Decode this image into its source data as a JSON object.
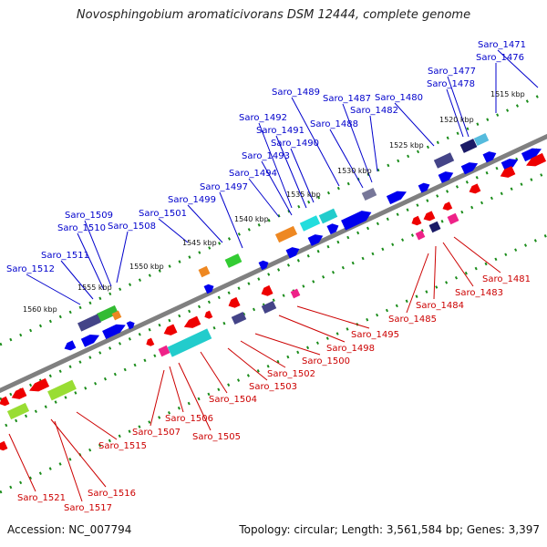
{
  "title": "Novosphingobium aromaticivorans DSM 12444, complete genome",
  "accession_text": "Accession: NC_007794",
  "summary_text": "Topology: circular; Length: 3,561,584 bp; Genes: 3,397",
  "colors": {
    "upper_label": "#0000cc",
    "lower_label": "#cc0000",
    "backbone": "#808080",
    "track_dots": "#1a8c1a",
    "forward_gene": "#0000ee",
    "reverse_gene": "#ee0000"
  },
  "scale_labels": [
    "1515 kbp",
    "1520 kbp",
    "1525 kbp",
    "1530 kbp",
    "1535 kbp",
    "1540 kbp",
    "1545 kbp",
    "1550 kbp",
    "1555 kbp",
    "1560 kbp"
  ],
  "upper_genes": [
    "Saro_1471",
    "Saro_1476",
    "Saro_1477",
    "Saro_1478",
    "Saro_1480",
    "Saro_1482",
    "Saro_1487",
    "Saro_1488",
    "Saro_1489",
    "Saro_1490",
    "Saro_1491",
    "Saro_1492",
    "Saro_1493",
    "Saro_1494",
    "Saro_1497",
    "Saro_1499",
    "Saro_1501",
    "Saro_1508",
    "Saro_1509",
    "Saro_1510",
    "Saro_1511",
    "Saro_1512"
  ],
  "lower_genes": [
    "Saro_1481",
    "Saro_1483",
    "Saro_1484",
    "Saro_1485",
    "Saro_1495",
    "Saro_1498",
    "Saro_1500",
    "Saro_1502",
    "Saro_1503",
    "Saro_1504",
    "Saro_1505",
    "Saro_1506",
    "Saro_1507",
    "Saro_1515",
    "Saro_1516",
    "Saro_1517",
    "Saro_1521"
  ]
}
